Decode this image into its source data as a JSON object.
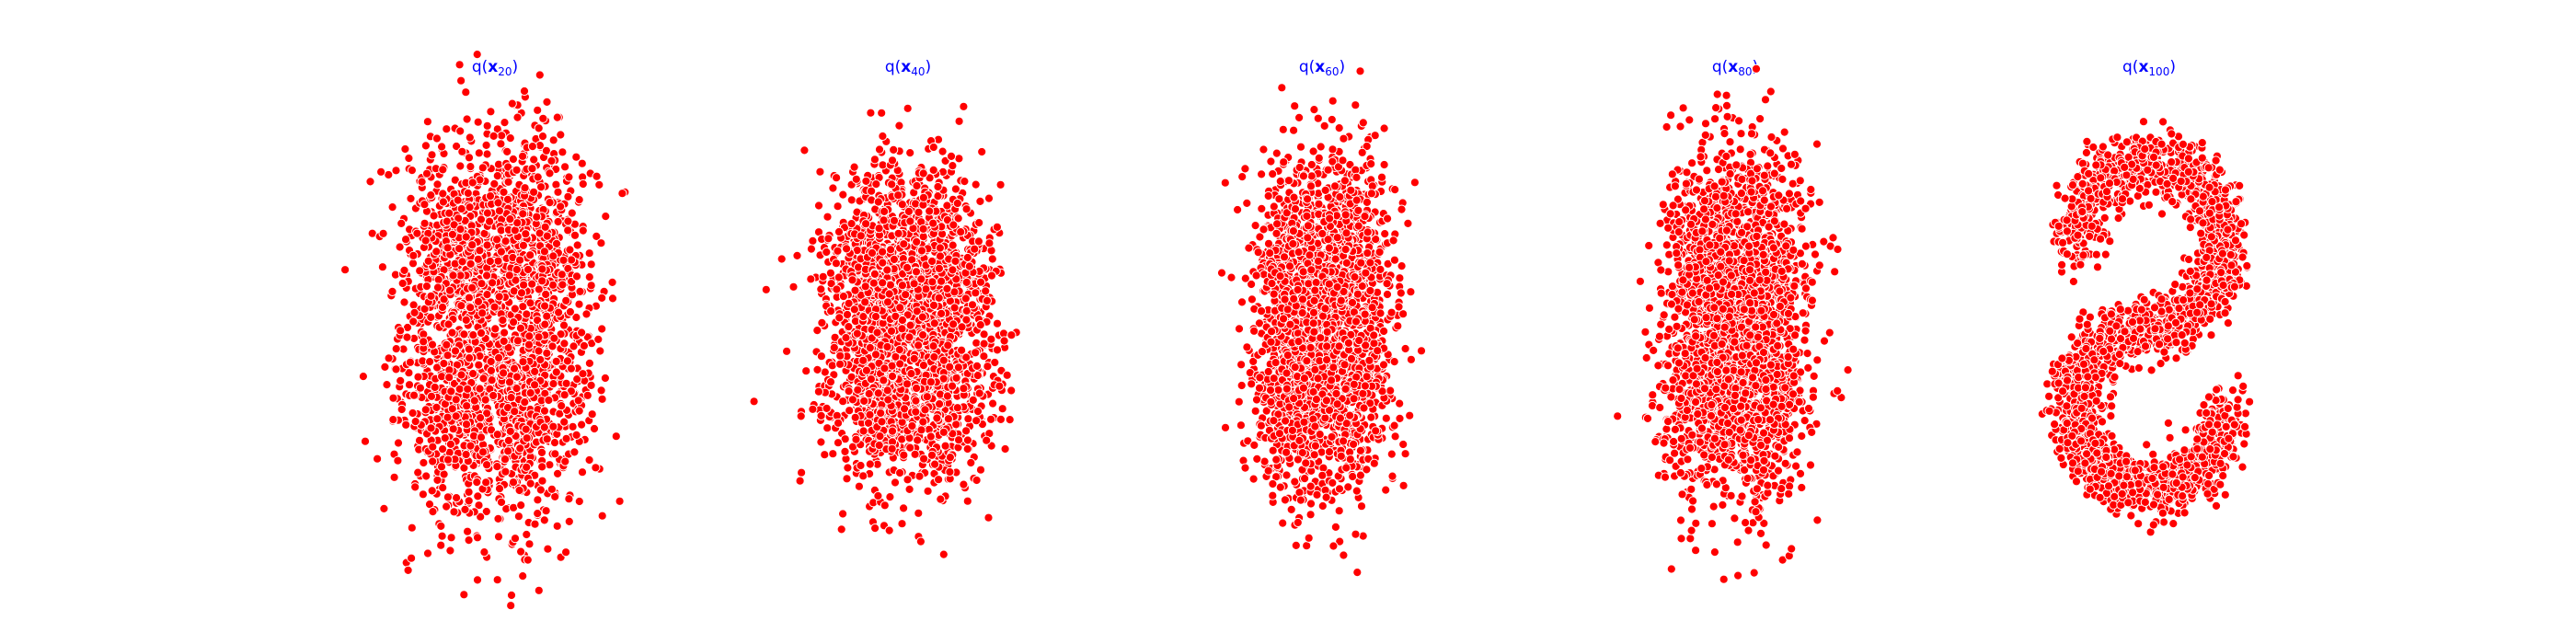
{
  "chart_data": [
    {
      "type": "scatter",
      "title_func": "q(",
      "title_var": "x",
      "title_sub": "20",
      "title_close": ")",
      "marker_color": "#ff0000",
      "edge_color": "#ffffff",
      "axes": "off",
      "distribution": {
        "shape": "blob",
        "cx": 0.0,
        "cy": 0.0,
        "sx": 0.9,
        "sy": 1.35,
        "n": 2500
      }
    },
    {
      "type": "scatter",
      "title_func": "q(",
      "title_var": "x",
      "title_sub": "40",
      "title_close": ")",
      "marker_color": "#ff0000",
      "edge_color": "#ffffff",
      "axes": "off",
      "distribution": {
        "shape": "blob",
        "cx": 0.0,
        "cy": 0.0,
        "sx": 0.8,
        "sy": 1.1,
        "n": 2500
      }
    },
    {
      "type": "scatter",
      "title_func": "q(",
      "title_var": "x",
      "title_sub": "60",
      "title_close": ")",
      "marker_color": "#ff0000",
      "edge_color": "#ffffff",
      "axes": "off",
      "distribution": {
        "shape": "blob",
        "cx": 0.0,
        "cy": 0.0,
        "sx": 0.65,
        "sy": 1.2,
        "n": 2500
      }
    },
    {
      "type": "scatter",
      "title_func": "q(",
      "title_var": "x",
      "title_sub": "80",
      "title_close": ")",
      "marker_color": "#ff0000",
      "edge_color": "#ffffff",
      "axes": "off",
      "distribution": {
        "shape": "blob",
        "cx": 0.0,
        "cy": 0.0,
        "sx": 0.7,
        "sy": 1.25,
        "n": 2500
      }
    },
    {
      "type": "scatter",
      "title_func": "q(",
      "title_var": "x",
      "title_sub": "100",
      "title_close": ")",
      "marker_color": "#ff0000",
      "edge_color": "#ffffff",
      "axes": "off",
      "distribution": {
        "shape": "s-curve",
        "n": 2500
      }
    }
  ]
}
